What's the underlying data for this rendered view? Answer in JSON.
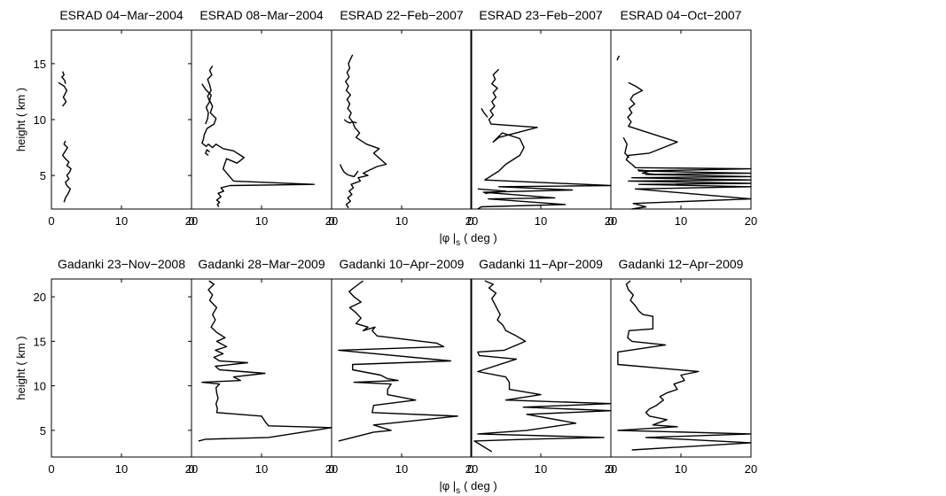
{
  "figure": {
    "xlabel_main": "|φ |",
    "xlabel_sub": "s",
    "xlabel_unit": "( deg )"
  },
  "chart_data": [
    {
      "type": "line",
      "title": "ESRAD 04−Mar−2004",
      "ylabel": "height ( km )",
      "xlim": [
        0,
        20
      ],
      "ylim": [
        2,
        18
      ],
      "xticks": [
        "0",
        "10",
        "20"
      ],
      "yticks": [
        "5",
        "10",
        "15"
      ],
      "series": [
        {
          "x": [
            1.6,
            1.8,
            1.5,
            1.9,
            2.0
          ],
          "y": [
            14.3,
            14.0,
            13.8,
            13.5,
            13.2
          ]
        },
        {
          "x": [
            1.0,
            1.8,
            2.2,
            1.7,
            2.1,
            1.6
          ],
          "y": [
            13.3,
            13.0,
            12.6,
            12.0,
            11.6,
            11.2
          ]
        },
        {
          "x": [
            2.0,
            1.8,
            2.3,
            1.9,
            1.6,
            2.0,
            2.5,
            2.2,
            2.8,
            2.6,
            2.2,
            2.5,
            2.0,
            2.2,
            2.7,
            2.4,
            2.0,
            1.8
          ],
          "y": [
            8.1,
            7.8,
            7.5,
            7.1,
            6.8,
            6.5,
            6.2,
            5.9,
            5.6,
            5.3,
            5.0,
            4.7,
            4.4,
            4.1,
            3.8,
            3.4,
            3.0,
            2.6
          ]
        }
      ]
    },
    {
      "type": "line",
      "title": "ESRAD 08−Mar−2004",
      "xlim": [
        0,
        20
      ],
      "ylim": [
        2,
        18
      ],
      "xticks": [
        "0",
        "10",
        "20"
      ],
      "series": [
        {
          "x": [
            3.0,
            2.6,
            2.9,
            2.3,
            2.6,
            2.8,
            2.3,
            2.6,
            2.1,
            2.4,
            2.3,
            2.0
          ],
          "y": [
            14.8,
            14.4,
            14.0,
            13.6,
            13.1,
            12.6,
            12.1,
            11.6,
            11.1,
            10.6,
            10.1,
            9.6
          ]
        },
        {
          "x": [
            1.5,
            2.0,
            2.8,
            2.6,
            3.0,
            2.7,
            3.5,
            3.2,
            2.2,
            1.8,
            1.7,
            1.5,
            2.1,
            2.4,
            3.0,
            3.5,
            4.5,
            6.0,
            7.5,
            6.5,
            5.0,
            4.5,
            6.0,
            17.5,
            5.5,
            4.2,
            4.6,
            3.8,
            4.2,
            3.6,
            4.0,
            3.7,
            3.9
          ],
          "y": [
            13.2,
            12.7,
            12.2,
            11.7,
            11.2,
            10.6,
            10.1,
            9.6,
            9.2,
            8.6,
            8.2,
            7.9,
            7.6,
            7.8,
            7.5,
            7.8,
            7.4,
            7.2,
            6.6,
            6.1,
            6.5,
            5.6,
            4.5,
            4.2,
            4.1,
            3.9,
            3.6,
            3.4,
            3.1,
            2.8,
            2.6,
            2.4,
            2.2
          ]
        },
        {
          "x": [
            2.6,
            2.2,
            2.0,
            2.4
          ],
          "y": [
            7.1,
            7.3,
            7.0,
            6.8
          ]
        }
      ]
    },
    {
      "type": "line",
      "title": "ESRAD 22−Feb−2007",
      "xlim": [
        0,
        20
      ],
      "ylim": [
        2,
        18
      ],
      "xticks": [
        "0",
        "10",
        "20"
      ],
      "series": [
        {
          "x": [
            3.0,
            2.7,
            2.4,
            2.6,
            2.2,
            2.5,
            2.0,
            2.4,
            2.1,
            2.7,
            2.2,
            2.6,
            2.3,
            2.8,
            2.5,
            3.0,
            3.3,
            4.0,
            3.5,
            5.0,
            6.8,
            6.0,
            7.8,
            6.5,
            5.5,
            4.5,
            5.2,
            3.8,
            4.1,
            2.8,
            3.1,
            2.5,
            2.9,
            2.3,
            2.7,
            2.1,
            2.4
          ],
          "y": [
            15.8,
            15.4,
            15.0,
            14.6,
            14.2,
            13.8,
            13.4,
            13.0,
            12.6,
            12.2,
            11.8,
            11.4,
            11.0,
            10.6,
            10.2,
            9.8,
            9.3,
            8.8,
            8.4,
            7.8,
            7.4,
            7.0,
            6.0,
            5.8,
            5.5,
            5.2,
            5.0,
            4.8,
            4.5,
            4.2,
            3.9,
            3.6,
            3.3,
            3.0,
            2.7,
            2.4,
            2.1
          ]
        },
        {
          "x": [
            1.8,
            2.2,
            2.6,
            3.0,
            3.6
          ],
          "y": [
            10.0,
            9.8,
            9.7,
            9.8,
            9.7
          ]
        },
        {
          "x": [
            1.2,
            1.5,
            1.8,
            2.2,
            2.6,
            3.2,
            3.8
          ],
          "y": [
            6.0,
            5.6,
            5.3,
            5.1,
            5.0,
            4.9,
            5.4
          ]
        }
      ]
    },
    {
      "type": "line",
      "title": "ESRAD 23−Feb−2007",
      "xlim": [
        0,
        20
      ],
      "ylim": [
        2,
        18
      ],
      "xticks": [
        "0",
        "10",
        "20"
      ],
      "series": [
        {
          "x": [
            4.0,
            3.2,
            3.5,
            3.0,
            3.8,
            3.2,
            3.6,
            3.0,
            3.4,
            2.8,
            3.2,
            2.6,
            2.9,
            9.5,
            4.0,
            3.2,
            4.5,
            7.0,
            7.6,
            7.0,
            5.0,
            4.0,
            2.0,
            20.0,
            4.0,
            14.5,
            1.8,
            12.0,
            2.5,
            13.5,
            1.5,
            1.0
          ],
          "y": [
            14.5,
            14.0,
            13.6,
            13.2,
            12.8,
            12.4,
            12.0,
            11.6,
            11.2,
            10.8,
            10.4,
            10.0,
            9.6,
            9.3,
            8.4,
            8.0,
            8.8,
            8.3,
            7.5,
            6.8,
            6.0,
            5.4,
            4.6,
            4.1,
            4.0,
            3.7,
            3.5,
            3.0,
            2.9,
            2.4,
            2.2,
            2.0
          ]
        },
        {
          "x": [
            1.5,
            1.9,
            2.4
          ],
          "y": [
            11.0,
            10.6,
            10.2
          ]
        },
        {
          "x": [
            1.0,
            5.0,
            2.0
          ],
          "y": [
            3.8,
            3.6,
            3.4
          ]
        }
      ]
    },
    {
      "type": "line",
      "title": "ESRAD 04−Oct−2007",
      "xlim": [
        0,
        20
      ],
      "ylim": [
        2,
        18
      ],
      "xticks": [
        "0",
        "10",
        "20"
      ],
      "series": [
        {
          "x": [
            0.9,
            1.0,
            1.2
          ],
          "y": [
            15.3,
            15.5,
            15.7
          ]
        },
        {
          "x": [
            2.5,
            3.5,
            4.5,
            3.2,
            2.8,
            3.4,
            2.6,
            3.0,
            2.4,
            2.9,
            2.5,
            9.5,
            5.5,
            2.5,
            2.2,
            3.0,
            3.5,
            20.0,
            4.0,
            20.0,
            5.0,
            20.0,
            3.0,
            20.0,
            2.5,
            20.0,
            4.0,
            20.0,
            3.5,
            20.0,
            3.2,
            5.0,
            3.0
          ],
          "y": [
            13.3,
            13.0,
            12.6,
            12.2,
            11.8,
            11.4,
            11.0,
            10.6,
            10.2,
            9.8,
            9.4,
            8.0,
            7.0,
            6.8,
            6.4,
            6.0,
            5.7,
            5.6,
            5.4,
            5.2,
            5.1,
            4.9,
            4.8,
            4.6,
            4.5,
            4.3,
            4.2,
            4.0,
            3.8,
            2.9,
            2.5,
            2.2,
            2.0
          ]
        },
        {
          "x": [
            1.8,
            2.3,
            2.0,
            2.6
          ],
          "y": [
            8.4,
            7.8,
            7.0,
            6.6
          ]
        },
        {
          "x": [
            3.8,
            5.5,
            4.5,
            6.5
          ],
          "y": [
            5.5,
            5.4,
            5.2,
            5.1
          ]
        }
      ]
    },
    {
      "type": "line",
      "title": "Gadanki 23−Nov−2008",
      "ylabel": "height ( km )",
      "xlim": [
        0,
        20
      ],
      "ylim": [
        2,
        22
      ],
      "xticks": [
        "0",
        "10",
        "20"
      ],
      "yticks": [
        "5",
        "10",
        "15",
        "20"
      ],
      "series": []
    },
    {
      "type": "line",
      "title": "Gadanki 28−Mar−2009",
      "xlim": [
        0,
        20
      ],
      "ylim": [
        2,
        22
      ],
      "xticks": [
        "0",
        "10",
        "20"
      ],
      "series": [
        {
          "x": [
            2.5,
            3.2,
            2.4,
            3.0,
            2.6,
            3.6,
            3.0,
            3.4,
            2.8,
            3.6,
            4.8,
            3.6,
            5.0,
            3.4,
            4.5,
            3.2,
            4.0,
            8.0,
            3.4,
            4.0,
            10.5,
            6.0,
            7.0,
            1.5,
            4.0,
            3.5,
            3.6,
            3.8,
            3.5,
            3.7,
            3.6,
            10.0,
            10.5,
            11.0,
            20.0,
            11.0,
            2.0,
            1.0
          ],
          "y": [
            21.8,
            21.4,
            20.8,
            20.2,
            19.6,
            18.8,
            18.0,
            17.4,
            16.6,
            16.0,
            15.4,
            15.0,
            14.4,
            14.0,
            13.6,
            13.2,
            12.8,
            12.6,
            12.2,
            11.8,
            11.4,
            11.0,
            10.6,
            10.4,
            10.2,
            9.8,
            9.2,
            8.6,
            8.0,
            7.4,
            7.0,
            6.6,
            6.0,
            5.5,
            5.3,
            4.2,
            4.0,
            3.8
          ]
        }
      ]
    },
    {
      "type": "line",
      "title": "Gadanki 10−Apr−2009",
      "xlim": [
        0,
        20
      ],
      "ylim": [
        2,
        22
      ],
      "xticks": [
        "0",
        "10",
        "20"
      ],
      "series": [
        {
          "x": [
            4.5,
            3.5,
            2.5,
            3.2,
            4.2,
            2.6,
            3.5,
            4.2,
            3.5,
            5.2,
            4.5,
            6.2,
            5.8,
            6.5,
            15.0,
            16.0,
            1.0,
            17.0,
            3.0,
            3.0,
            7.0,
            8.0,
            9.5,
            3.2,
            8.5,
            8.0,
            8.0,
            12.0,
            6.0,
            5.8,
            18.0,
            6.0,
            8.5,
            6.0,
            1.0
          ],
          "y": [
            21.8,
            21.2,
            20.6,
            20.0,
            19.4,
            18.8,
            18.2,
            17.6,
            17.0,
            16.6,
            16.2,
            16.6,
            16.2,
            15.6,
            14.8,
            14.4,
            14.0,
            12.8,
            12.4,
            11.8,
            11.2,
            10.8,
            10.6,
            10.4,
            10.2,
            9.6,
            9.0,
            8.4,
            7.8,
            7.0,
            6.6,
            5.6,
            5.0,
            4.8,
            3.8
          ]
        }
      ]
    },
    {
      "type": "line",
      "title": "Gadanki 11−Apr−2009",
      "xlim": [
        0,
        20
      ],
      "ylim": [
        2,
        22
      ],
      "xticks": [
        "0",
        "10",
        "20"
      ],
      "series": [
        {
          "x": [
            2.0,
            3.2,
            2.6,
            3.6,
            3.0,
            3.4,
            3.8,
            4.2,
            3.8,
            4.6,
            5.0,
            6.5,
            7.8,
            6.0,
            4.8,
            1.0,
            1.2,
            6.5,
            1.0,
            5.0,
            5.5,
            5.5,
            10.0,
            5.0,
            20.0,
            7.5,
            20.0,
            8.0,
            15.0,
            8.0,
            1.0,
            19.0,
            8.0,
            0.5,
            3.0
          ],
          "y": [
            21.8,
            21.4,
            21.0,
            20.4,
            19.8,
            19.2,
            18.6,
            18.0,
            17.4,
            16.8,
            16.2,
            15.6,
            15.0,
            14.4,
            14.0,
            13.8,
            13.4,
            13.0,
            11.6,
            11.0,
            10.4,
            9.6,
            9.0,
            8.4,
            8.0,
            7.6,
            7.2,
            6.8,
            5.8,
            5.0,
            4.6,
            4.2,
            4.0,
            3.8,
            2.6
          ]
        }
      ]
    },
    {
      "type": "line",
      "title": "Gadanki 12−Apr−2009",
      "xlim": [
        0,
        20
      ],
      "ylim": [
        2,
        22
      ],
      "xticks": [
        "0",
        "10",
        "20"
      ],
      "series": [
        {
          "x": [
            2.8,
            2.2,
            2.5,
            3.2,
            2.8,
            3.5,
            4.0,
            4.6,
            6.0,
            6.0,
            2.6,
            2.4,
            3.0,
            7.8,
            1.0,
            1.0,
            12.5,
            10.0,
            10.5,
            9.0,
            9.5,
            8.0,
            7.0,
            7.5,
            6.5,
            5.5,
            5.0,
            5.5,
            8.0,
            6.0,
            9.5,
            1.0,
            20.0,
            5.0,
            20.0,
            3.0
          ],
          "y": [
            21.8,
            21.4,
            20.8,
            20.2,
            19.6,
            19.0,
            18.4,
            18.0,
            17.8,
            16.4,
            16.2,
            15.4,
            15.0,
            14.6,
            13.8,
            12.4,
            11.6,
            11.2,
            10.6,
            10.2,
            9.6,
            9.2,
            8.8,
            8.4,
            7.8,
            7.4,
            7.0,
            6.6,
            6.2,
            5.6,
            5.4,
            5.0,
            4.6,
            4.2,
            3.6,
            2.8
          ]
        }
      ]
    }
  ]
}
